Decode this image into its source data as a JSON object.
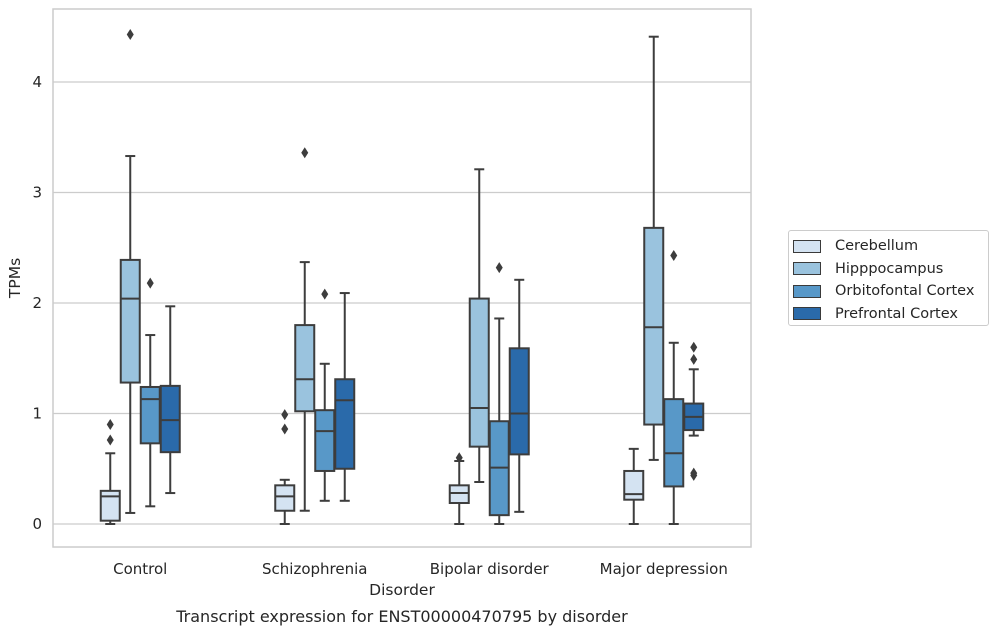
{
  "caption": "Transcript expression for ENST00000470795 by disorder",
  "chart_data": {
    "type": "box",
    "xlabel": "Disorder",
    "ylabel": "TPMs",
    "ylim": [
      -0.22,
      4.65
    ],
    "yticks": [
      0,
      1,
      2,
      3,
      4
    ],
    "grid": "horizontal",
    "legend_position": "right",
    "categories": [
      "Control",
      "Schizophrenia",
      "Bipolar disorder",
      "Major depression"
    ],
    "series": [
      {
        "name": "Cerebellum",
        "color": "#d4e3f2",
        "boxes": [
          {
            "whislo": 0.0,
            "q1": 0.03,
            "med": 0.25,
            "q3": 0.3,
            "whishi": 0.64,
            "fliers": [
              0.76,
              0.9
            ]
          },
          {
            "whislo": 0.0,
            "q1": 0.12,
            "med": 0.25,
            "q3": 0.35,
            "whishi": 0.4,
            "fliers": [
              0.86,
              0.99
            ]
          },
          {
            "whislo": 0.0,
            "q1": 0.19,
            "med": 0.28,
            "q3": 0.35,
            "whishi": 0.57,
            "fliers": [
              0.6
            ]
          },
          {
            "whislo": 0.0,
            "q1": 0.22,
            "med": 0.27,
            "q3": 0.48,
            "whishi": 0.68,
            "fliers": []
          }
        ]
      },
      {
        "name": "Hipppocampus",
        "color": "#9ac3de",
        "boxes": [
          {
            "whislo": 0.1,
            "q1": 1.28,
            "med": 2.04,
            "q3": 2.39,
            "whishi": 3.33,
            "fliers": [
              4.43
            ]
          },
          {
            "whislo": 0.12,
            "q1": 1.02,
            "med": 1.31,
            "q3": 1.8,
            "whishi": 2.37,
            "fliers": [
              3.36
            ]
          },
          {
            "whislo": 0.38,
            "q1": 0.7,
            "med": 1.05,
            "q3": 2.04,
            "whishi": 3.21,
            "fliers": []
          },
          {
            "whislo": 0.58,
            "q1": 0.9,
            "med": 1.78,
            "q3": 2.68,
            "whishi": 4.41,
            "fliers": []
          }
        ]
      },
      {
        "name": "Orbitofontal Cortex",
        "color": "#5898c8",
        "boxes": [
          {
            "whislo": 0.16,
            "q1": 0.73,
            "med": 1.13,
            "q3": 1.24,
            "whishi": 1.71,
            "fliers": [
              2.18
            ]
          },
          {
            "whislo": 0.21,
            "q1": 0.48,
            "med": 0.84,
            "q3": 1.03,
            "whishi": 1.45,
            "fliers": [
              2.08
            ]
          },
          {
            "whislo": 0.0,
            "q1": 0.08,
            "med": 0.51,
            "q3": 0.93,
            "whishi": 1.86,
            "fliers": [
              2.32
            ]
          },
          {
            "whislo": 0.0,
            "q1": 0.34,
            "med": 0.64,
            "q3": 1.13,
            "whishi": 1.64,
            "fliers": [
              2.43
            ]
          }
        ]
      },
      {
        "name": "Prefrontal Cortex",
        "color": "#2a6aaa",
        "boxes": [
          {
            "whislo": 0.28,
            "q1": 0.65,
            "med": 0.94,
            "q3": 1.25,
            "whishi": 1.97,
            "fliers": []
          },
          {
            "whislo": 0.21,
            "q1": 0.5,
            "med": 1.12,
            "q3": 1.31,
            "whishi": 2.09,
            "fliers": []
          },
          {
            "whislo": 0.11,
            "q1": 0.63,
            "med": 1.0,
            "q3": 1.59,
            "whishi": 2.21,
            "fliers": []
          },
          {
            "whislo": 0.8,
            "q1": 0.85,
            "med": 0.97,
            "q3": 1.09,
            "whishi": 1.4,
            "fliers": [
              0.44,
              0.46,
              1.49,
              1.6
            ]
          }
        ]
      }
    ]
  }
}
